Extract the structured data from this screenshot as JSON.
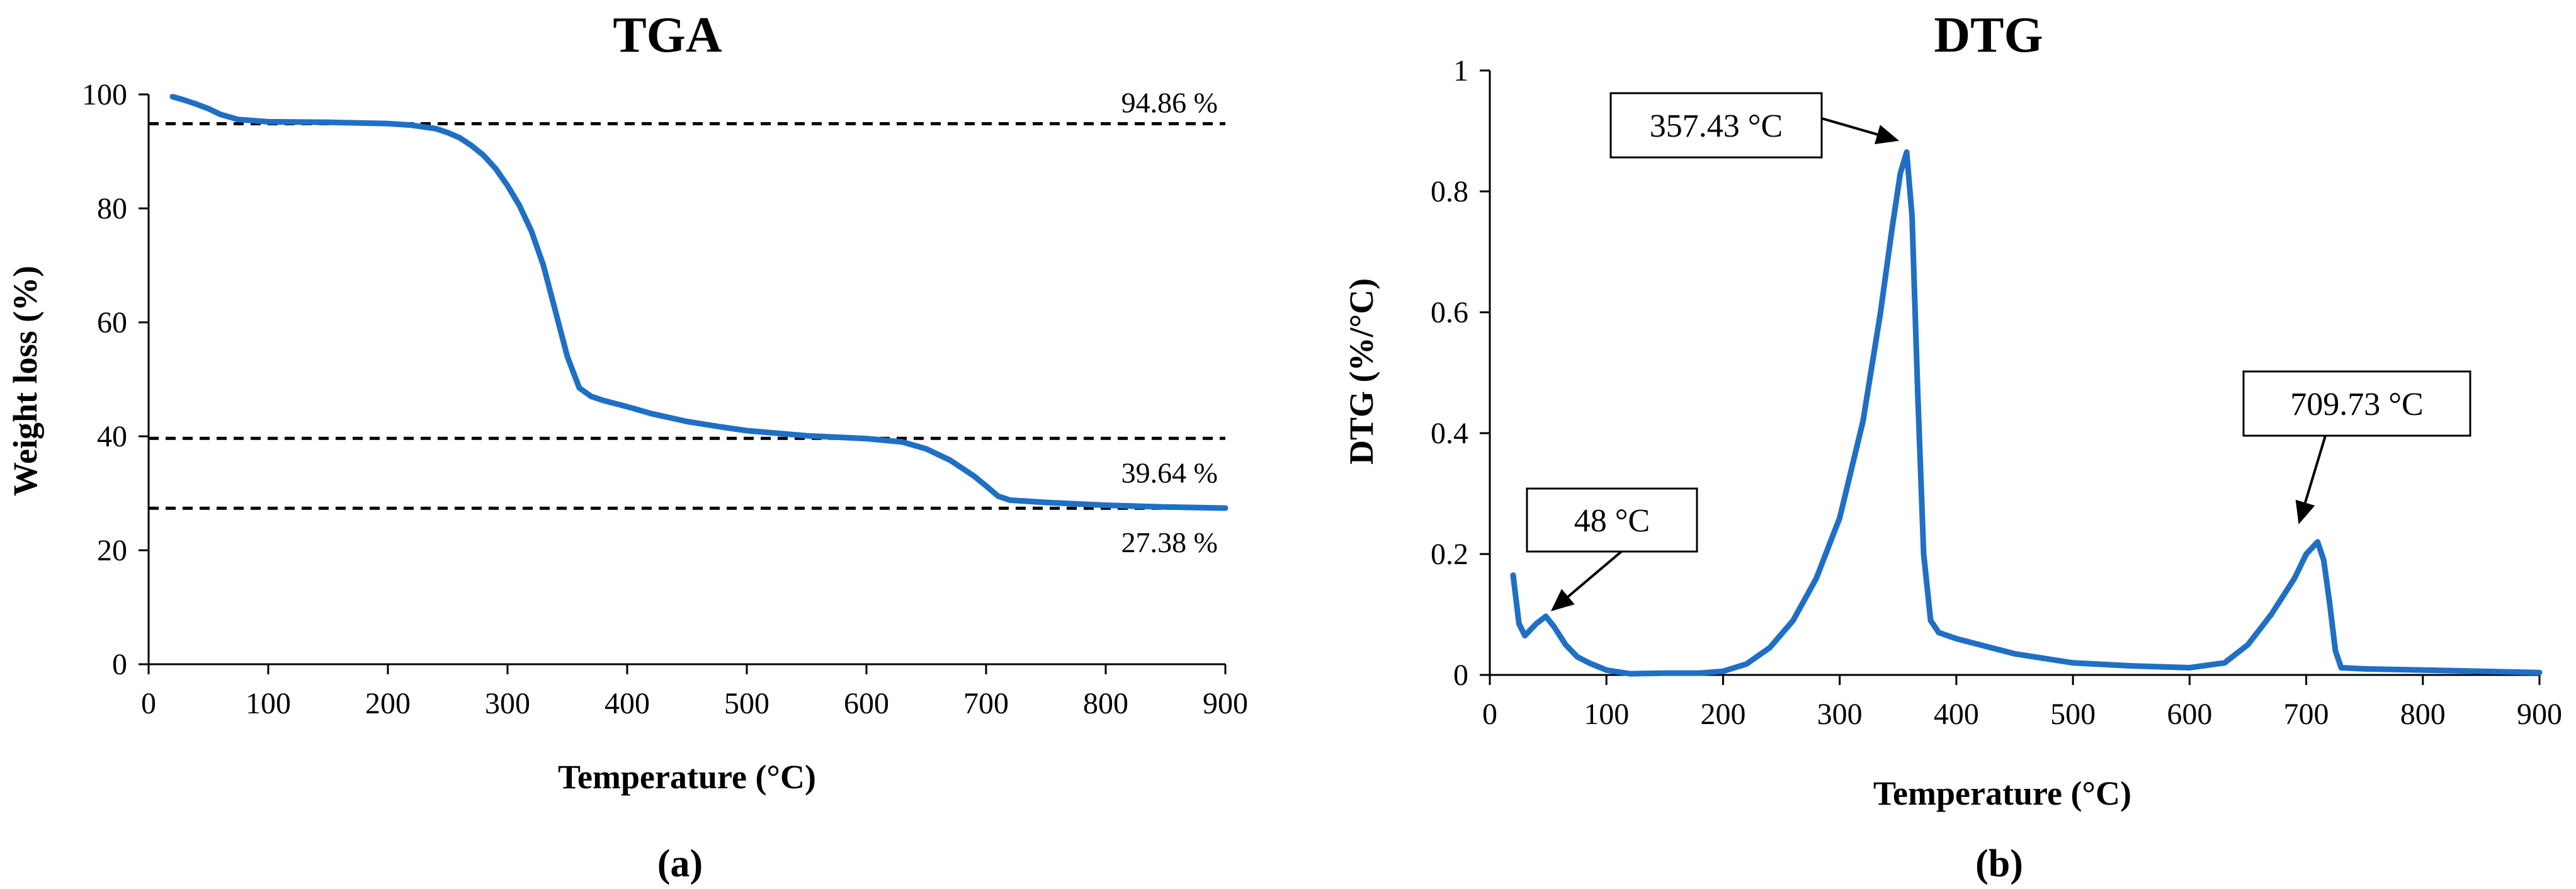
{
  "chart_data": [
    {
      "type": "line",
      "title": "TGA",
      "xlabel": "Temperature (°C)",
      "ylabel": "Weight loss (%)",
      "caption": "(a)",
      "xlim": [
        0,
        900
      ],
      "ylim": [
        0,
        100
      ],
      "xticks": [
        0,
        100,
        200,
        300,
        400,
        500,
        600,
        700,
        800,
        900
      ],
      "yticks": [
        0,
        20,
        40,
        60,
        80,
        100
      ],
      "series": [
        {
          "name": "TGA",
          "color": "#1f6fc5",
          "x": [
            20,
            30,
            40,
            50,
            60,
            75,
            100,
            150,
            200,
            220,
            240,
            250,
            260,
            270,
            280,
            290,
            300,
            310,
            320,
            330,
            340,
            350,
            360,
            370,
            380,
            400,
            420,
            450,
            480,
            500,
            550,
            600,
            630,
            650,
            670,
            690,
            700,
            710,
            720,
            750,
            800,
            850,
            900
          ],
          "y": [
            99.6,
            99.0,
            98.3,
            97.5,
            96.5,
            95.6,
            95.2,
            95.1,
            94.9,
            94.6,
            94.0,
            93.3,
            92.4,
            91.0,
            89.3,
            87.0,
            84.0,
            80.5,
            76.0,
            70.0,
            62.0,
            54.0,
            48.5,
            47.0,
            46.3,
            45.2,
            44.0,
            42.6,
            41.6,
            41.0,
            40.1,
            39.6,
            39.0,
            37.8,
            35.8,
            33.0,
            31.3,
            29.5,
            28.8,
            28.4,
            27.9,
            27.6,
            27.4
          ]
        }
      ],
      "reference_lines": [
        {
          "y": 94.86,
          "label": "94.86 %"
        },
        {
          "y": 39.64,
          "label": "39.64 %"
        },
        {
          "y": 27.38,
          "label": "27.38 %"
        }
      ]
    },
    {
      "type": "line",
      "title": "DTG",
      "xlabel": "Temperature (°C)",
      "ylabel": "DTG (%/°C)",
      "caption": "(b)",
      "xlim": [
        0,
        900
      ],
      "ylim": [
        0,
        1
      ],
      "xticks": [
        0,
        100,
        200,
        300,
        400,
        500,
        600,
        700,
        800,
        900
      ],
      "yticks": [
        0,
        0.2,
        0.4,
        0.6,
        0.8,
        1
      ],
      "ytick_labels": [
        "0",
        "0.2",
        "0.4",
        "0.6",
        "0.8",
        "1"
      ],
      "series": [
        {
          "name": "DTG",
          "color": "#1f6fc5",
          "x": [
            20,
            25,
            30,
            35,
            40,
            48,
            55,
            65,
            75,
            85,
            100,
            120,
            150,
            180,
            200,
            220,
            240,
            260,
            280,
            300,
            320,
            335,
            345,
            352,
            357.43,
            362,
            367,
            372,
            378,
            385,
            400,
            420,
            450,
            500,
            550,
            600,
            630,
            650,
            670,
            690,
            700,
            709.73,
            715,
            720,
            725,
            730,
            750,
            800,
            850,
            900
          ],
          "y": [
            0.165,
            0.085,
            0.065,
            0.075,
            0.085,
            0.097,
            0.08,
            0.05,
            0.03,
            0.02,
            0.008,
            0.002,
            0.003,
            0.003,
            0.006,
            0.018,
            0.045,
            0.09,
            0.16,
            0.26,
            0.42,
            0.6,
            0.74,
            0.83,
            0.865,
            0.76,
            0.46,
            0.2,
            0.09,
            0.07,
            0.06,
            0.05,
            0.035,
            0.02,
            0.015,
            0.012,
            0.02,
            0.05,
            0.1,
            0.16,
            0.2,
            0.22,
            0.19,
            0.12,
            0.04,
            0.012,
            0.01,
            0.008,
            0.006,
            0.004
          ]
        }
      ],
      "annotations": [
        {
          "label": "357.43 °C",
          "x": 357.43,
          "y": 0.865
        },
        {
          "label": "709.73 °C",
          "x": 709.73,
          "y": 0.22
        },
        {
          "label": "48 °C",
          "x": 48,
          "y": 0.097
        }
      ]
    }
  ]
}
